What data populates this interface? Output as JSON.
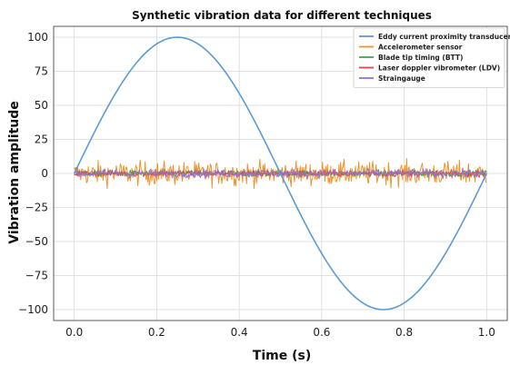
{
  "chart_data": {
    "type": "line",
    "title": "Synthetic vibration data for different techniques",
    "xlabel": "Time (s)",
    "ylabel": "Vibration amplitude",
    "xlim": [
      -0.05,
      1.05
    ],
    "ylim": [
      -108,
      108
    ],
    "xticks": [
      0.0,
      0.2,
      0.4,
      0.6,
      0.8,
      1.0
    ],
    "xtick_labels": [
      "0.0",
      "0.2",
      "0.4",
      "0.6",
      "0.8",
      "1.0"
    ],
    "yticks": [
      100,
      75,
      50,
      25,
      0,
      -25,
      -50,
      -75,
      -100
    ],
    "ytick_labels": [
      "100",
      "75",
      "50",
      "25",
      "0",
      "−25",
      "−50",
      "−75",
      "−100"
    ],
    "grid": true,
    "legend_position": "top-right",
    "series": [
      {
        "name": "Eddy current proximity transducers",
        "color": "#5b9bd5",
        "description_values": {
          "kind": "sine",
          "amplitude": 100,
          "frequency_hz": 1
        },
        "x": [
          0.0,
          0.05,
          0.1,
          0.15,
          0.2,
          0.25,
          0.3,
          0.35,
          0.4,
          0.45,
          0.5,
          0.55,
          0.6,
          0.65,
          0.7,
          0.75,
          0.8,
          0.85,
          0.9,
          0.95,
          1.0
        ],
        "y": [
          0,
          30.9,
          58.8,
          80.9,
          95.1,
          100,
          95.1,
          80.9,
          58.8,
          30.9,
          0,
          -30.9,
          -58.8,
          -80.9,
          -95.1,
          -100,
          -95.1,
          -80.9,
          -58.8,
          -30.9,
          0
        ]
      },
      {
        "name": "Accelerometer sensor",
        "color": "#f0932b",
        "description_values": {
          "kind": "noise",
          "center": 0,
          "approx_range": [
            -11,
            11
          ]
        }
      },
      {
        "name": "Blade tip timing (BTT)",
        "color": "#3cab4b",
        "description_values": {
          "kind": "noise",
          "center": 0,
          "approx_range": [
            -3,
            3
          ]
        }
      },
      {
        "name": "Laser doppler vibrometer (LDV)",
        "color": "#e0454a",
        "description_values": {
          "kind": "noise",
          "center": 0,
          "approx_range": [
            -3,
            3
          ]
        }
      },
      {
        "name": "Straingauge",
        "color": "#9b6fd0",
        "description_values": {
          "kind": "noise",
          "center": 0,
          "approx_range": [
            -4,
            4
          ]
        }
      }
    ]
  }
}
